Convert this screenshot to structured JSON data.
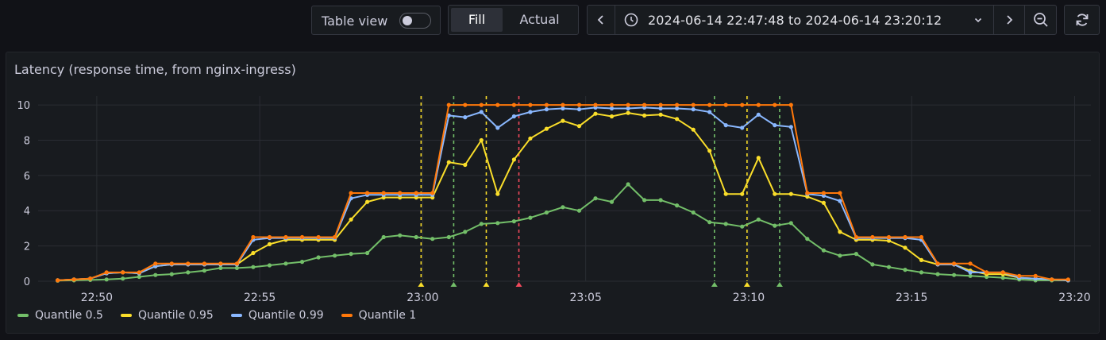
{
  "toolbar": {
    "table_view_label": "Table view",
    "table_view_on": false,
    "fill_label": "Fill",
    "actual_label": "Actual",
    "time_range": "2024-06-14 22:47:48 to 2024-06-14 23:20:12"
  },
  "icons": {
    "prev": "chevron-left-icon",
    "clock": "clock-icon",
    "dropdown": "chevron-down-icon",
    "next": "chevron-right-icon",
    "zoom_out": "zoom-out-icon",
    "refresh": "refresh-icon"
  },
  "panel": {
    "title": "Latency (response time, from nginx-ingress)"
  },
  "colors": {
    "q50": "#73bf69",
    "q95": "#fade2a",
    "q99": "#8ab8ff",
    "q1": "#ff780a",
    "annotation_red": "#f2495c",
    "background": "#181b1f"
  },
  "chart_data": {
    "type": "line",
    "title": "Latency (response time, from nginx-ingress)",
    "xlabel": "",
    "ylabel": "",
    "x_unit": "minutes after 22:47",
    "x_ticks": [
      {
        "x": 3,
        "label": "22:50"
      },
      {
        "x": 8,
        "label": "22:55"
      },
      {
        "x": 13,
        "label": "23:00"
      },
      {
        "x": 18,
        "label": "23:05"
      },
      {
        "x": 23,
        "label": "23:10"
      },
      {
        "x": 28,
        "label": "23:15"
      },
      {
        "x": 33,
        "label": "23:20"
      }
    ],
    "y_ticks": [
      0,
      2,
      4,
      6,
      8,
      10
    ],
    "xlim": [
      1.2,
      33.5
    ],
    "ylim": [
      0,
      10.5
    ],
    "grid": true,
    "legend_position": "bottom-left",
    "x": [
      1.8,
      2.3,
      2.8,
      3.3,
      3.8,
      4.3,
      4.8,
      5.3,
      5.8,
      6.3,
      6.8,
      7.3,
      7.8,
      8.3,
      8.8,
      9.3,
      9.8,
      10.3,
      10.8,
      11.3,
      11.8,
      12.3,
      12.8,
      13.3,
      13.8,
      14.3,
      14.8,
      15.3,
      15.8,
      16.3,
      16.8,
      17.3,
      17.8,
      18.3,
      18.8,
      19.3,
      19.8,
      20.3,
      20.8,
      21.3,
      21.8,
      22.3,
      22.8,
      23.3,
      23.8,
      24.3,
      24.8,
      25.3,
      25.8,
      26.3,
      26.8,
      27.3,
      27.8,
      28.3,
      28.8,
      29.3,
      29.8,
      30.3,
      30.8,
      31.3,
      31.8,
      32.3,
      32.8
    ],
    "series": [
      {
        "name": "Quantile 0.5",
        "color": "#73bf69",
        "values": [
          0.03,
          0.05,
          0.07,
          0.1,
          0.15,
          0.25,
          0.35,
          0.4,
          0.5,
          0.6,
          0.75,
          0.75,
          0.8,
          0.9,
          1.0,
          1.1,
          1.35,
          1.45,
          1.55,
          1.6,
          2.5,
          2.6,
          2.5,
          2.4,
          2.5,
          2.8,
          3.25,
          3.3,
          3.4,
          3.6,
          3.9,
          4.2,
          4.0,
          4.7,
          4.5,
          5.5,
          4.6,
          4.6,
          4.3,
          3.9,
          3.35,
          3.25,
          3.1,
          3.5,
          3.15,
          3.3,
          2.4,
          1.75,
          1.45,
          1.55,
          0.95,
          0.8,
          0.65,
          0.5,
          0.4,
          0.35,
          0.3,
          0.25,
          0.2,
          0.1,
          0.05,
          0.05,
          0.05
        ]
      },
      {
        "name": "Quantile 0.95",
        "color": "#fade2a",
        "values": [
          0.05,
          0.1,
          0.15,
          0.45,
          0.5,
          0.45,
          0.85,
          0.95,
          0.95,
          0.95,
          0.95,
          0.95,
          1.6,
          2.1,
          2.35,
          2.35,
          2.35,
          2.35,
          3.5,
          4.5,
          4.75,
          4.75,
          4.75,
          4.75,
          6.75,
          6.6,
          8.0,
          4.95,
          6.9,
          8.1,
          8.65,
          9.1,
          8.8,
          9.5,
          9.35,
          9.55,
          9.4,
          9.45,
          9.2,
          8.6,
          7.4,
          4.95,
          4.95,
          7.0,
          4.95,
          4.95,
          4.8,
          4.45,
          2.8,
          2.35,
          2.35,
          2.3,
          1.9,
          1.2,
          0.95,
          0.95,
          0.6,
          0.4,
          0.4,
          0.2,
          0.15,
          0.1,
          0.05
        ]
      },
      {
        "name": "Quantile 0.99",
        "color": "#8ab8ff",
        "values": [
          0.05,
          0.1,
          0.15,
          0.45,
          0.5,
          0.45,
          0.85,
          0.95,
          0.95,
          0.95,
          0.95,
          0.95,
          2.35,
          2.45,
          2.45,
          2.45,
          2.45,
          2.45,
          4.7,
          4.9,
          4.9,
          4.9,
          4.9,
          4.9,
          9.4,
          9.3,
          9.6,
          8.7,
          9.35,
          9.6,
          9.75,
          9.8,
          9.75,
          9.85,
          9.8,
          9.8,
          9.85,
          9.8,
          9.8,
          9.75,
          9.6,
          8.85,
          8.7,
          9.45,
          8.85,
          8.75,
          4.95,
          4.85,
          4.55,
          2.45,
          2.45,
          2.45,
          2.45,
          2.35,
          0.95,
          0.95,
          0.5,
          0.5,
          0.5,
          0.2,
          0.15,
          0.1,
          0.05
        ]
      },
      {
        "name": "Quantile 1",
        "color": "#ff780a",
        "values": [
          0.05,
          0.1,
          0.15,
          0.5,
          0.5,
          0.5,
          1.0,
          1.0,
          1.0,
          1.0,
          1.0,
          1.0,
          2.5,
          2.5,
          2.5,
          2.5,
          2.5,
          2.5,
          5.0,
          5.0,
          5.0,
          5.0,
          5.0,
          5.0,
          10,
          10,
          10,
          10,
          10,
          10,
          10,
          10,
          10,
          10,
          10,
          10,
          10,
          10,
          10,
          10,
          10,
          10,
          10,
          10,
          10,
          10,
          5.0,
          5.0,
          5.0,
          2.5,
          2.5,
          2.5,
          2.5,
          2.5,
          1.0,
          1.0,
          1.0,
          0.5,
          0.5,
          0.3,
          0.3,
          0.1,
          0.1
        ]
      }
    ],
    "annotations": [
      {
        "x": 12.95,
        "color": "#fade2a"
      },
      {
        "x": 13.95,
        "color": "#73bf69"
      },
      {
        "x": 14.95,
        "color": "#fade2a"
      },
      {
        "x": 15.95,
        "color": "#f2495c"
      },
      {
        "x": 21.95,
        "color": "#73bf69"
      },
      {
        "x": 22.95,
        "color": "#fade2a"
      },
      {
        "x": 23.95,
        "color": "#73bf69"
      }
    ]
  }
}
